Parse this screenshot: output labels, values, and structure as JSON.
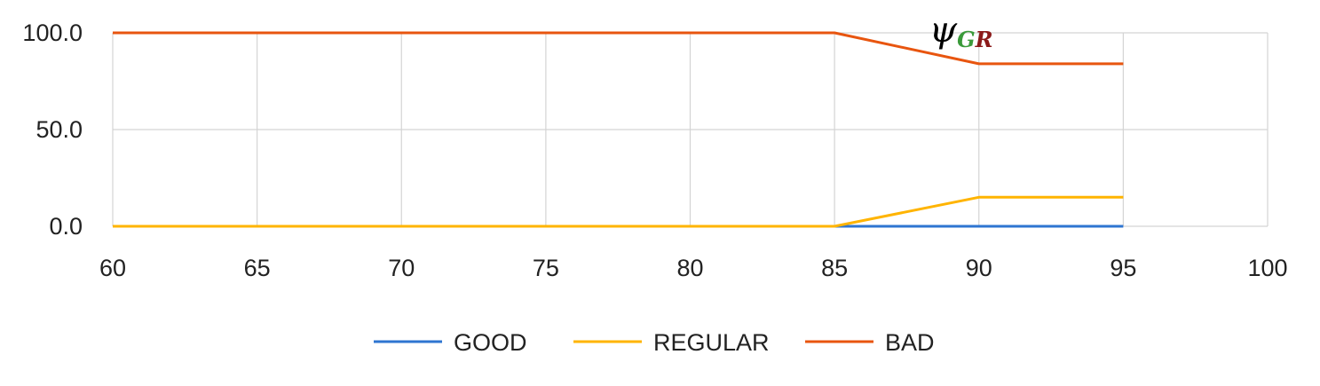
{
  "chart_data": {
    "type": "line",
    "x": [
      60,
      65,
      70,
      75,
      80,
      85,
      90,
      95
    ],
    "series": [
      {
        "name": "GOOD",
        "color": "#2E75D1",
        "values": [
          0,
          0,
          0,
          0,
          0,
          0,
          0,
          0
        ]
      },
      {
        "name": "REGULAR",
        "color": "#FFB400",
        "values": [
          0,
          0,
          0,
          0,
          0,
          0,
          15,
          15
        ]
      },
      {
        "name": "BAD",
        "color": "#E8550F",
        "values": [
          100,
          100,
          100,
          100,
          100,
          100,
          84,
          84
        ]
      }
    ],
    "xlim": [
      60,
      100
    ],
    "ylim": [
      0,
      100
    ],
    "xticks": [
      "60",
      "65",
      "70",
      "75",
      "80",
      "85",
      "90",
      "95",
      "100"
    ],
    "yticks": [
      "0.0",
      "50.0",
      "100.0"
    ],
    "grid": true,
    "legend": "bottom",
    "annotation": {
      "symbol": "ψ",
      "sub_1": "G",
      "sub_2": "R",
      "sub_1_color": "#3A9A3A",
      "sub_2_color": "#8B1A1A",
      "anchor_x": 90,
      "anchor_y": 100
    }
  }
}
